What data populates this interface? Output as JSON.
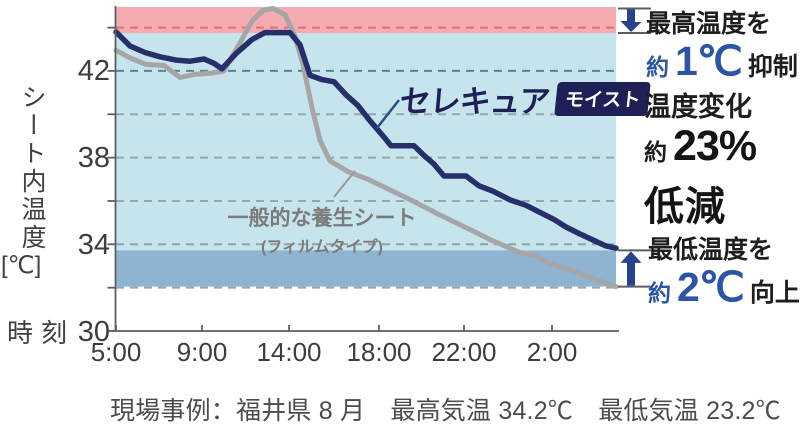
{
  "chart_data": {
    "type": "line",
    "x_axis": {
      "title": "時刻",
      "ticks": [
        {
          "label": "5:00",
          "pos": 0.0
        },
        {
          "label": "9:00",
          "pos": 0.172
        },
        {
          "label": "14:00",
          "pos": 0.346
        },
        {
          "label": "18:00",
          "pos": 0.526
        },
        {
          "label": "22:00",
          "pos": 0.696
        },
        {
          "label": "2:00",
          "pos": 0.872
        }
      ]
    },
    "y_axis": {
      "title": "シート内温度",
      "unit": "[℃]",
      "tick_labels": [
        "42",
        "38",
        "34",
        "30"
      ],
      "tick_values": [
        42,
        38,
        34,
        30
      ],
      "range_c": [
        30,
        44.95
      ],
      "minor_tick_step_c": 2
    },
    "gridlines": [
      {
        "temp_c": 44,
        "color": "#e0716e"
      },
      {
        "temp_c": 42,
        "color": "#4f8894"
      },
      {
        "temp_c": 40,
        "color": "#95a7ad"
      },
      {
        "temp_c": 38,
        "color": "#95a7ad"
      },
      {
        "temp_c": 36,
        "color": "#95a7ad"
      },
      {
        "temp_c": 34,
        "color": "#8ba4ac"
      },
      {
        "temp_c": 32,
        "color": "#95a7ad"
      }
    ],
    "bands": [
      {
        "name": "max-suppression",
        "from_c": 43.75,
        "to_c": 44.95,
        "color": "#f6abb0"
      },
      {
        "name": "main",
        "from_c": 33.72,
        "to_c": 43.75,
        "color": "#c6e4ec"
      },
      {
        "name": "min-improvement",
        "from_c": 32.05,
        "to_c": 33.72,
        "color": "#8fb4d2"
      }
    ],
    "series": [
      {
        "name": "一般的な養生シート（フィルムタイプ）",
        "color": "#a6a6a6",
        "stroke_width": 5,
        "points": [
          [
            0.0,
            42.95
          ],
          [
            0.028,
            42.6
          ],
          [
            0.06,
            42.3
          ],
          [
            0.096,
            42.25
          ],
          [
            0.128,
            41.7
          ],
          [
            0.16,
            41.85
          ],
          [
            0.192,
            41.9
          ],
          [
            0.216,
            42.0
          ],
          [
            0.248,
            43.3
          ],
          [
            0.272,
            44.3
          ],
          [
            0.294,
            44.8
          ],
          [
            0.314,
            44.88
          ],
          [
            0.338,
            44.6
          ],
          [
            0.358,
            43.6
          ],
          [
            0.374,
            42.3
          ],
          [
            0.392,
            40.3
          ],
          [
            0.408,
            38.8
          ],
          [
            0.428,
            37.85
          ],
          [
            0.464,
            37.35
          ],
          [
            0.504,
            37.0
          ],
          [
            0.54,
            36.6
          ],
          [
            0.576,
            36.2
          ],
          [
            0.606,
            35.85
          ],
          [
            0.644,
            35.4
          ],
          [
            0.684,
            34.95
          ],
          [
            0.724,
            34.5
          ],
          [
            0.75,
            34.2
          ],
          [
            0.78,
            33.9
          ],
          [
            0.81,
            33.6
          ],
          [
            0.836,
            33.5
          ],
          [
            0.87,
            33.1
          ],
          [
            0.91,
            32.8
          ],
          [
            0.94,
            32.55
          ],
          [
            0.97,
            32.3
          ],
          [
            1.0,
            32.05
          ]
        ]
      },
      {
        "name": "セレキュア モイスト",
        "color": "#262f69",
        "stroke_width": 5.5,
        "points": [
          [
            0.0,
            43.8
          ],
          [
            0.028,
            43.15
          ],
          [
            0.058,
            42.85
          ],
          [
            0.088,
            42.65
          ],
          [
            0.12,
            42.5
          ],
          [
            0.148,
            42.45
          ],
          [
            0.176,
            42.55
          ],
          [
            0.196,
            42.35
          ],
          [
            0.212,
            42.1
          ],
          [
            0.24,
            42.8
          ],
          [
            0.272,
            43.45
          ],
          [
            0.298,
            43.77
          ],
          [
            0.348,
            43.77
          ],
          [
            0.368,
            43.2
          ],
          [
            0.388,
            41.8
          ],
          [
            0.412,
            41.6
          ],
          [
            0.436,
            41.5
          ],
          [
            0.46,
            40.9
          ],
          [
            0.484,
            40.4
          ],
          [
            0.508,
            39.7
          ],
          [
            0.534,
            39.0
          ],
          [
            0.55,
            38.55
          ],
          [
            0.596,
            38.55
          ],
          [
            0.616,
            38.1
          ],
          [
            0.636,
            37.7
          ],
          [
            0.656,
            37.15
          ],
          [
            0.7,
            37.15
          ],
          [
            0.726,
            36.7
          ],
          [
            0.754,
            36.45
          ],
          [
            0.788,
            36.05
          ],
          [
            0.82,
            35.8
          ],
          [
            0.85,
            35.45
          ],
          [
            0.876,
            35.15
          ],
          [
            0.9,
            34.8
          ],
          [
            0.926,
            34.5
          ],
          [
            0.954,
            34.2
          ],
          [
            0.98,
            33.92
          ],
          [
            1.0,
            33.82
          ]
        ]
      }
    ]
  },
  "legend": {
    "serecure": "セレキュア",
    "serecure_badge": "モイスト",
    "general_line1": "一般的な養生シート",
    "general_line2": "(フィルムタイプ)"
  },
  "annotations": {
    "max": {
      "prefix": "最高温度を",
      "approx": "約",
      "value": "1℃",
      "suffix": "抑制"
    },
    "change": {
      "line1": "温度変化",
      "approx": "約",
      "value": "23%",
      "line2": "低減"
    },
    "min": {
      "prefix": "最低温度を",
      "approx": "約",
      "value": "2℃",
      "suffix": "向上"
    }
  },
  "caption": "現場事例：福井県 8 月　最高気温 34.2℃　最低気温 23.2℃",
  "colors": {
    "axis": "#5a5f63",
    "bracket": "#5a5f63",
    "arrow": "#27418f",
    "pointer_serecure": "#24507c",
    "pointer_general": "#9a9a9a",
    "blue_text": "#2c55a5"
  }
}
